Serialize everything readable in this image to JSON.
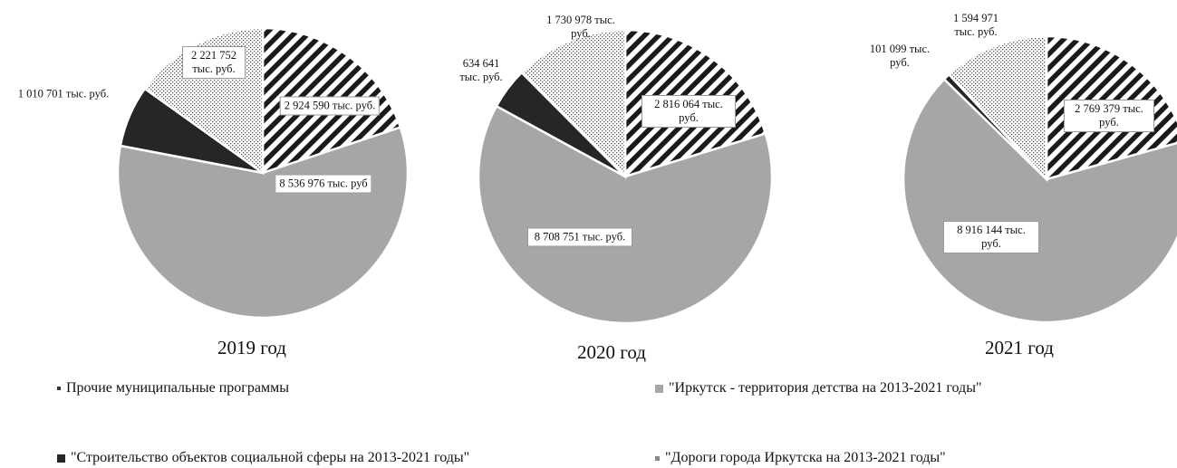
{
  "chart_data": [
    {
      "type": "pie",
      "title": "2019 год",
      "series": [
        {
          "name": "\"Дороги города Иркутска на 2013-2021  годы\"",
          "value": 2924590,
          "label": "2 924 590 тыс. руб."
        },
        {
          "name": "\"Иркутск - территория детства на 2013-2021  годы\"",
          "value": 8536976,
          "label": "8 536 976 тыс. руб"
        },
        {
          "name": "\"Строительство объектов социальной сферы на 2013-2021  годы\"",
          "value": 1010701,
          "label": "1 010 701 тыс. руб."
        },
        {
          "name": "Прочие муниципальные программы",
          "value": 2221752,
          "label": "2 221 752 тыс. руб."
        }
      ]
    },
    {
      "type": "pie",
      "title": "2020 год",
      "series": [
        {
          "name": "\"Дороги города Иркутска на 2013-2021  годы\"",
          "value": 2816064,
          "label": "2 816 064 тыс. руб."
        },
        {
          "name": "\"Иркутск - территория детства на 2013-2021  годы\"",
          "value": 8708751,
          "label": "8 708 751 тыс. руб."
        },
        {
          "name": "\"Строительство объектов социальной сферы на 2013-2021  годы\"",
          "value": 634641,
          "label": "634 641 тыс. руб."
        },
        {
          "name": "Прочие муниципальные программы",
          "value": 1730978,
          "label": "1 730 978 тыс. руб."
        }
      ]
    },
    {
      "type": "pie",
      "title": "2021 год",
      "series": [
        {
          "name": "\"Дороги города Иркутска на 2013-2021  годы\"",
          "value": 2769379,
          "label": "2 769 379 тыс. руб."
        },
        {
          "name": "\"Иркутск - территория детства на 2013-2021  годы\"",
          "value": 8916144,
          "label": "8 916 144 тыс. руб."
        },
        {
          "name": "\"Строительство объектов социальной сферы на 2013-2021  годы\"",
          "value": 101099,
          "label": "101 099 тыс. руб."
        },
        {
          "name": "Прочие муниципальные программы",
          "value": 1594971,
          "label": "1 594 971 тыс. руб."
        }
      ]
    }
  ],
  "legend": [
    {
      "label": "Прочие муниципальные программы",
      "fill": "dots"
    },
    {
      "label": "\"Иркутск - территория детства на 2013-2021  годы\"",
      "fill": "#a6a6a6"
    },
    {
      "label": "\"Строительство объектов социальной сферы на 2013-2021  годы\"",
      "fill": "#262626"
    },
    {
      "label": "\"Дороги города Иркутска на 2013-2021  годы\"",
      "fill": "stripes"
    }
  ],
  "colors": {
    "territory": "#a6a6a6",
    "construction": "#262626",
    "roads_stripe": "#1a1a1a",
    "others_dots": "#555555"
  }
}
